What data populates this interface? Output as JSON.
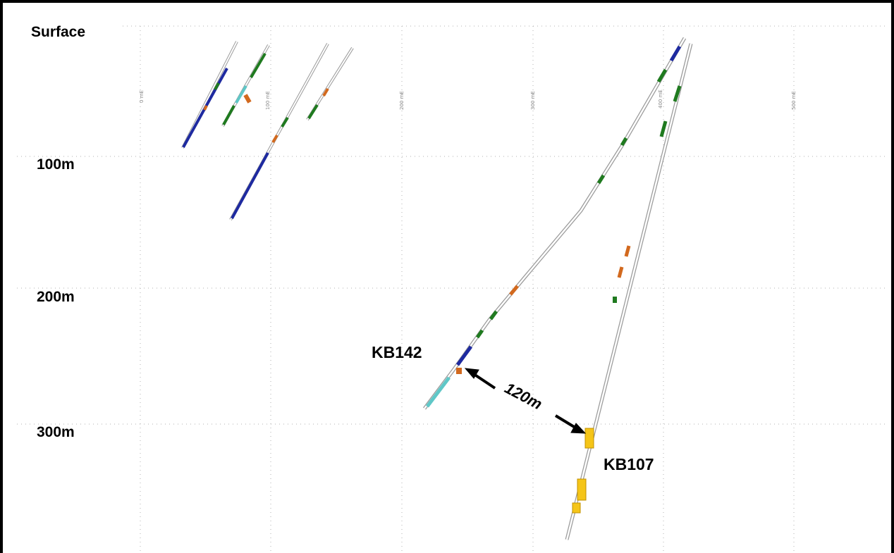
{
  "section": {
    "depth_labels": [
      "Surface",
      "100m",
      "200m",
      "300m"
    ],
    "easting_ticks": [
      "0 mE",
      "100 mE",
      "200 mE",
      "300 mE",
      "400 mE",
      "500 mE"
    ],
    "holes": [
      {
        "id": "KB142",
        "label": "KB142"
      },
      {
        "id": "KB107",
        "label": "KB107"
      }
    ],
    "distance_annotation": "120m",
    "colors": {
      "blue": "#1e2aa0",
      "green": "#1f7a1f",
      "orange": "#d2691e",
      "yellow": "#f5c518",
      "cyan": "#5fc7c7",
      "trace": "#9a9a9a",
      "grid": "#b0b0b0"
    }
  }
}
